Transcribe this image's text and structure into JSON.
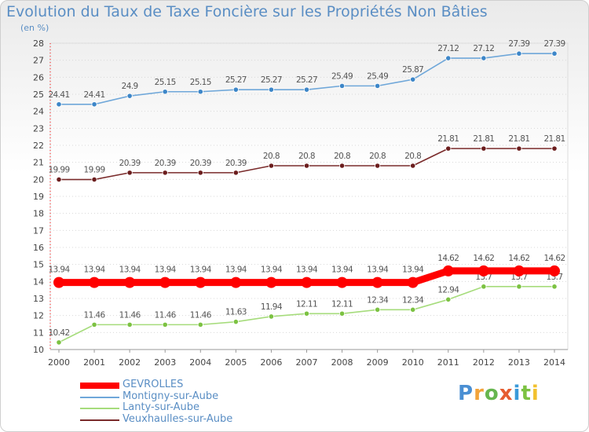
{
  "header": {
    "title": "Evolution du Taux de Taxe Foncière sur les Propriétés Non Bâties",
    "unit": "(en %)"
  },
  "logo": {
    "text": "Proxiti"
  },
  "chart_data": {
    "type": "line",
    "title": "Evolution du Taux de Taxe Foncière sur les Propriétés Non Bâties",
    "ylabel": "(en %)",
    "xlabel": "",
    "ylim": [
      10,
      28
    ],
    "yticks": [
      10,
      11,
      12,
      13,
      14,
      15,
      16,
      17,
      18,
      19,
      20,
      21,
      22,
      23,
      24,
      25,
      26,
      27,
      28
    ],
    "grid": "horizontal dotted",
    "legend_position": "bottom-left",
    "x": [
      "2000",
      "2001",
      "2002",
      "2003",
      "2004",
      "2005",
      "2006",
      "2007",
      "2008",
      "2009",
      "2010",
      "2011",
      "2012",
      "2013",
      "2014"
    ],
    "series": [
      {
        "name": "GEVROLLES",
        "color": "#ff0000",
        "marker": "#ff0000",
        "values": [
          13.94,
          13.94,
          13.94,
          13.94,
          13.94,
          13.94,
          13.94,
          13.94,
          13.94,
          13.94,
          13.94,
          14.62,
          14.62,
          14.62,
          14.62
        ],
        "labels": [
          "13.94",
          "13.94",
          "13.94",
          "13.94",
          "13.94",
          "13.94",
          "13.94",
          "13.94",
          "13.94",
          "13.94",
          "13.94",
          "14.62",
          "14.62",
          "14.62",
          "14.62"
        ]
      },
      {
        "name": "Montigny-sur-Aube",
        "color": "#6fa7d9",
        "marker": "#3d86c8",
        "values": [
          24.41,
          24.41,
          24.9,
          25.15,
          25.15,
          25.27,
          25.27,
          25.27,
          25.49,
          25.49,
          25.87,
          27.12,
          27.12,
          27.39,
          27.39
        ],
        "labels": [
          "24.41",
          "24.41",
          "24.9",
          "25.15",
          "25.15",
          "25.27",
          "25.27",
          "25.27",
          "25.49",
          "25.49",
          "25.87",
          "27.12",
          "27.12",
          "27.39",
          "27.39"
        ]
      },
      {
        "name": "Lanty-sur-Aube",
        "color": "#a6dc7c",
        "marker": "#7cc242",
        "values": [
          10.42,
          11.46,
          11.46,
          11.46,
          11.46,
          11.63,
          11.94,
          12.11,
          12.11,
          12.34,
          12.34,
          12.94,
          13.7,
          13.7,
          13.7
        ],
        "labels": [
          "10.42",
          "11.46",
          "11.46",
          "11.46",
          "11.46",
          "11.63",
          "11.94",
          "12.11",
          "12.11",
          "12.34",
          "12.34",
          "12.94",
          "13.7",
          "13.7",
          "13.7"
        ]
      },
      {
        "name": "Veuxhaulles-sur-Aube",
        "color": "#7a2b2b",
        "marker": "#6b1d1d",
        "values": [
          19.99,
          19.99,
          20.39,
          20.39,
          20.39,
          20.39,
          20.8,
          20.8,
          20.8,
          20.8,
          20.8,
          21.81,
          21.81,
          21.81,
          21.81
        ],
        "labels": [
          "19.99",
          "19.99",
          "20.39",
          "20.39",
          "20.39",
          "20.39",
          "20.8",
          "20.8",
          "20.8",
          "20.8",
          "20.8",
          "21.81",
          "21.81",
          "21.81",
          "21.81"
        ]
      }
    ]
  }
}
